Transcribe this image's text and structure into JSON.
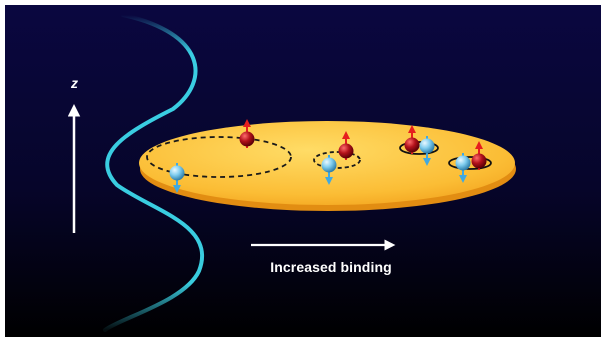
{
  "axis": {
    "label": "z"
  },
  "arrow_caption": {
    "label": "Increased binding"
  },
  "colors": {
    "background_top": "#0a0740",
    "background_bottom": "#000000",
    "wave": "#3fe3f5",
    "disk_light": "#ffd35a",
    "disk_dark": "#f3a21e",
    "spin_up_particle": "#b3121b",
    "spin_up_arrow": "#e61e1e",
    "spin_down_particle": "#7fcdef",
    "spin_down_arrow": "#41a9e0",
    "orbit": "#1a1a1a"
  },
  "icons": {
    "spin_up": "red-spin-up-particle-icon",
    "spin_down": "blue-spin-down-particle-icon"
  }
}
